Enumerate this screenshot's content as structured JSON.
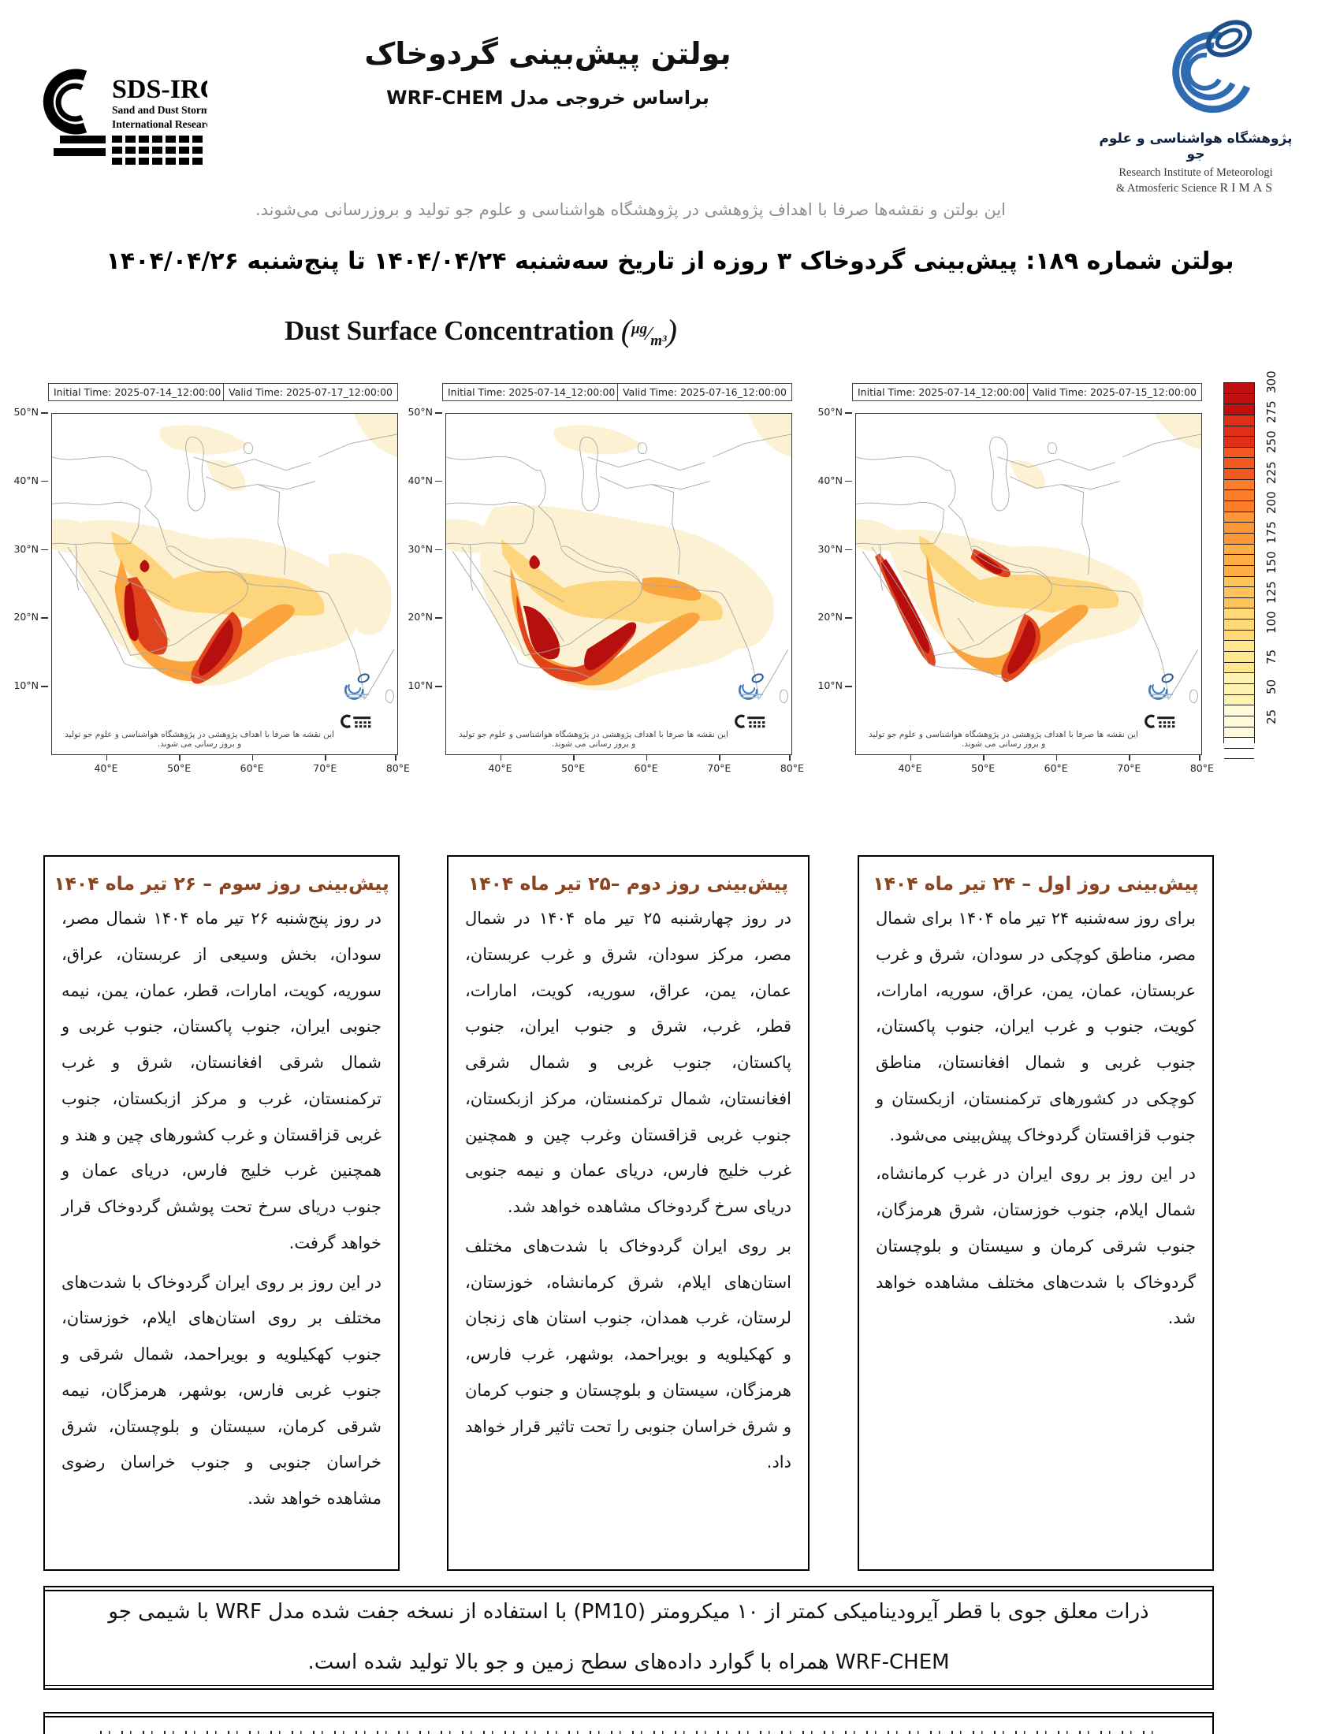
{
  "header": {
    "sdsirc_logo": {
      "acronym": "SDS-IRC",
      "line1": "Sand and Dust Storm",
      "line2": "International Research Center"
    },
    "title": "بولتن پیش‌بینی گردوخاک",
    "subtitle": "براساس خروجی مدل WRF-CHEM",
    "rimas_logo": {
      "caption_fa": "پژوهشگاه هواشناسی و علوم جو",
      "caption_en1": "Research Institute of Meteorologi",
      "caption_en2": "& Atmosferic Science",
      "acronym": "RIMAS"
    }
  },
  "disclaimer": "این بولتن و نقشه‌ها صرفا با اهداف پژوهشی در پژوهشگاه هواشناسی و علوم جو تولید و بروزرسانی می‌شوند.",
  "bulletin_line": "بولتن شماره ۱۸۹: پیش‌بینی گردوخاک ۳ روزه از تاریخ سه‌شنبه ۱۴۰۴/۰۴/۲۴ تا پنج‌شنبه ۱۴۰۴/۰۴/۲۶",
  "chart_heading": {
    "title": "Dust Surface Concentration",
    "unit_numerator": "μg",
    "unit_denominator": "m³"
  },
  "maps": [
    {
      "initial_time": "Initial Time: 2025-07-14_12:00:00",
      "valid_time": "Valid Time: 2025-07-17_12:00:00"
    },
    {
      "initial_time": "Initial Time: 2025-07-14_12:00:00",
      "valid_time": "Valid Time: 2025-07-16_12:00:00"
    },
    {
      "initial_time": "Initial Time: 2025-07-14_12:00:00",
      "valid_time": "Valid Time: 2025-07-15_12:00:00"
    }
  ],
  "map_axes": {
    "lat_labels": [
      "50°N",
      "40°N",
      "30°N",
      "20°N",
      "10°N"
    ],
    "lon_labels": [
      "40°E",
      "50°E",
      "60°E",
      "70°E",
      "80°E"
    ]
  },
  "map_watermark": "این نقشه ها صرفا با اهداف پژوهشی در پژوهشگاه هواشناسی و علوم جو تولید و بروز رسانی می شوند.",
  "colorbar": {
    "labels": [
      "25",
      "50",
      "75",
      "100",
      "125",
      "150",
      "175",
      "200",
      "225",
      "250",
      "275",
      "300"
    ],
    "colors_bottom_to_top": [
      "#ffffff",
      "#fffbda",
      "#fff3b2",
      "#fee68f",
      "#fed975",
      "#fec35a",
      "#fdad43",
      "#fd9637",
      "#fc7d2c",
      "#f1571f",
      "#e23018",
      "#c10f0f"
    ]
  },
  "forecast_boxes": {
    "day3": {
      "heading": "پیش‌بینی روز سوم – ۲۶ تیر ماه ۱۴۰۴",
      "para1": "در روز پنج‌شنبه ۲۶ تیر ماه ۱۴۰۴ شمال مصر، سودان، بخش وسیعی از عربستان، عراق، سوریه، کویت، امارات، قطر، عمان، یمن، نیمه جنوبی ایران، جنوب پاکستان، جنوب غربی و شمال شرقی افغانستان، شرق و غرب ترکمنستان، غرب و مرکز ازبکستان، جنوب غربی قزاقستان و غرب کشورهای چین و هند و همچنین غرب خلیج فارس، دریای عمان و جنوب دریای سرخ تحت پوشش گردوخاک قرار خواهد گرفت.",
      "para2": "در این روز بر روی ایران گردوخاک با شدت‌های مختلف بر روی استان‌های ایلام، خوزستان، جنوب کهکیلویه و بویراحمد، شمال شرقی و جنوب غربی فارس، بوشهر، هرمزگان، نیمه شرقی کرمان، سیستان و بلوچستان، شرق خراسان جنوبی و جنوب خراسان رضوی مشاهده خواهد شد."
    },
    "day2": {
      "heading": "پیش‌بینی روز دوم –۲۵ تیر ماه ۱۴۰۴",
      "para1": "در روز چهارشنبه ۲۵ تیر ماه ۱۴۰۴ در شمال مصر، مرکز سودان، شرق و غرب عربستان، عمان، یمن، عراق، سوریه، کویت، امارات، قطر، غرب، شرق و جنوب ایران، جنوب پاکستان، جنوب غربی و شمال شرقی افغانستان، شمال ترکمنستان، مرکز ازبکستان، جنوب غربی قزاقستان وغرب چین و همچنین غرب خلیج فارس، دریای عمان و نیمه جنوبی دریای سرخ گردوخاک مشاهده خواهد شد.",
      "para2": "بر روی ایران گردوخاک با شدت‌های مختلف استان‌های ایلام، شرق کرمانشاه، خوزستان، لرستان، غرب همدان، جنوب استان های زنجان و کهکیلویه و بویراحمد، بوشهر، غرب فارس، هرمزگان، سیستان و بلوچستان و جنوب کرمان و شرق خراسان جنوبی را تحت تاثیر قرار خواهد داد."
    },
    "day1": {
      "heading": "پیش‌بینی روز اول – ۲۴ تیر ماه ۱۴۰۴",
      "para1": "برای روز سه‌شنبه ۲۴ تیر ماه ۱۴۰۴ برای شمال مصر، مناطق کوچکی در سودان، شرق و غرب عربستان، عمان، یمن، عراق، سوریه، امارات، کویت، جنوب و غرب ایران، جنوب پاکستان، جنوب غربی و شمال افغانستان، مناطق کوچکی در کشورهای ترکمنستان، ازبکستان و جنوب قزاقستان گردوخاک پیش‌بینی می‌شود.",
      "para2": "در این روز بر روی ایران در غرب کرمانشاه، شمال ایلام، جنوب خوزستان، شرق هرمزگان، جنوب شرقی کرمان و سیستان و بلوچستان گردوخاک با شدت‌های مختلف مشاهده خواهد شد."
    }
  },
  "pm10_note": "ذرات معلق جوی با قطر آیرودینامیکی کمتر از ۱۰ میکرومتر (PM10) با استفاده از نسخه جفت شده مدل WRF با شیمی جو WRF-CHEM همراه با گوارد داده‌های سطح زمین و جو بالا تولید شده است.",
  "accent_colors": {
    "heading_brown": "#8a4420",
    "logo_blue": "#2f6bb0",
    "map_border_gray": "#9a9a9a"
  }
}
